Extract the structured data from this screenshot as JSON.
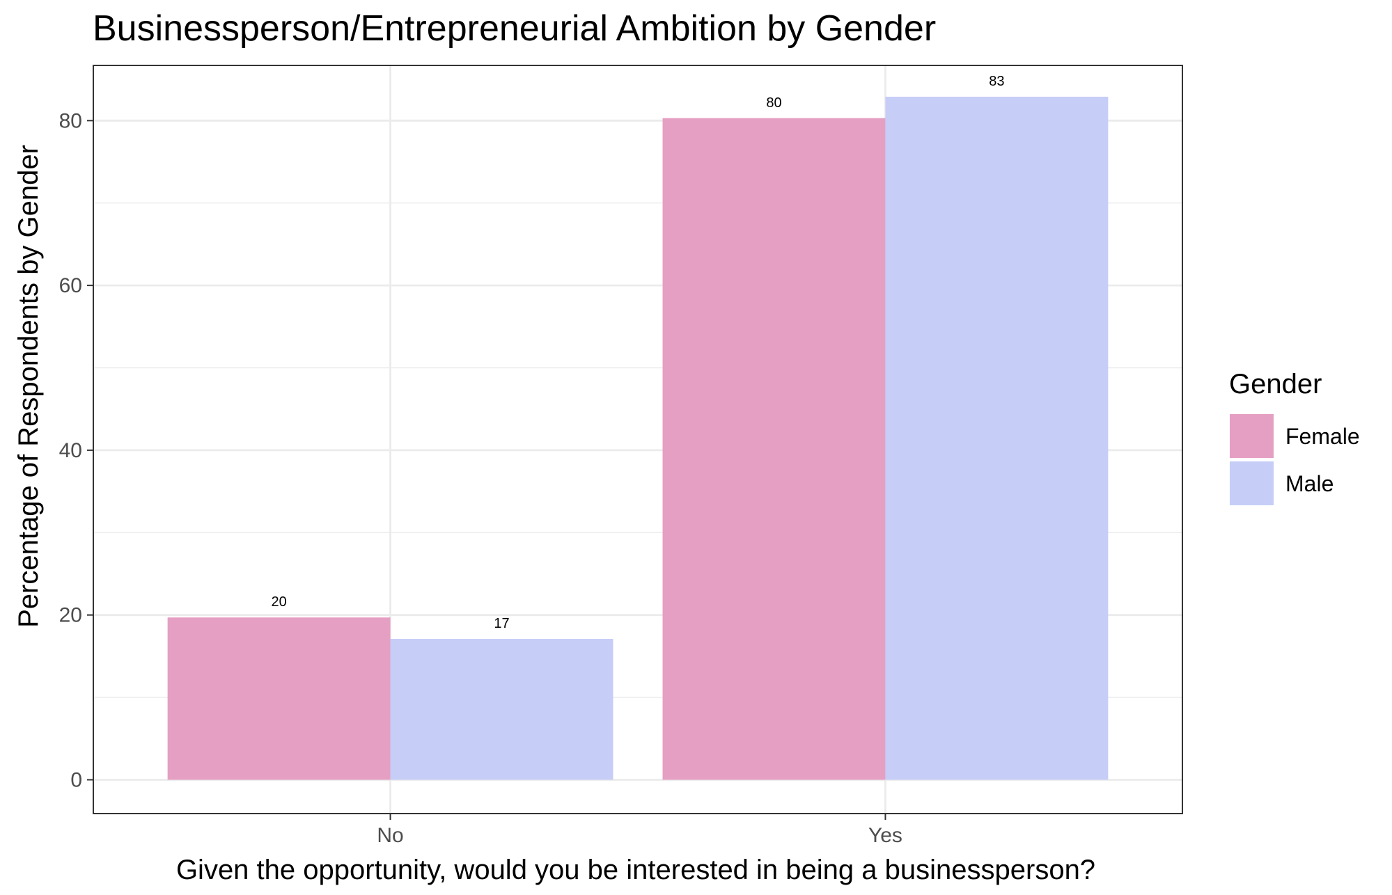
{
  "chart_data": {
    "type": "bar",
    "title": "Businessperson/Entrepreneurial Ambition by Gender",
    "xlabel": "Given the opportunity, would you be interested in being a businessperson?",
    "ylabel": "Percentage of Respondents by Gender",
    "categories": [
      "No",
      "Yes"
    ],
    "series": [
      {
        "name": "Female",
        "values": [
          19.7,
          80.3
        ],
        "labels": [
          "20",
          "80"
        ],
        "color": "#e59fc3"
      },
      {
        "name": "Male",
        "values": [
          17.1,
          82.9
        ],
        "labels": [
          "17",
          "83"
        ],
        "color": "#c6cdf7"
      }
    ],
    "ylim": [
      -4.1,
      86.7
    ],
    "yticks": [
      0,
      20,
      40,
      60,
      80
    ],
    "grid": true,
    "legend": {
      "title": "Gender",
      "position": "right"
    },
    "colors": {
      "panel_border": "#333333",
      "grid": "#ebebeb",
      "tick_text": "#4d4d4d"
    }
  }
}
